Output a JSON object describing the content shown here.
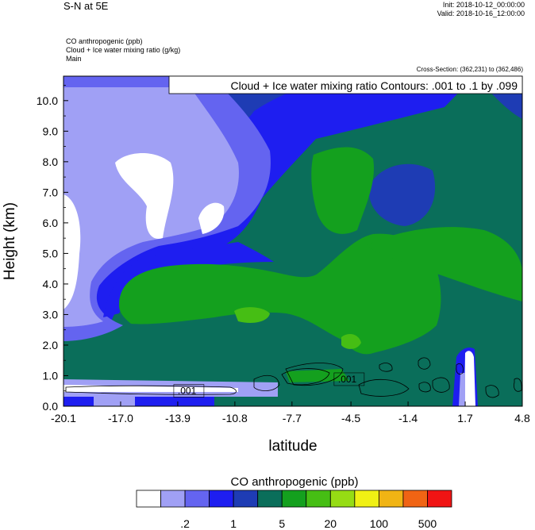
{
  "header": {
    "title": "S-N at 5E",
    "init": "Init: 2018-10-12_00:00:00",
    "valid": "Valid: 2018-10-16_12:00:00",
    "field1": "CO anthropogenic   (ppb)",
    "field2": "Cloud + Ice water mixing ratio   (g/kg)",
    "field3": "Main",
    "cross_section": "Cross-Section: (362,231) to (362,486)",
    "contour_info": "Cloud + Ice water mixing ratio Contours: .001 to .1 by .099"
  },
  "chart_data": {
    "type": "heatmap",
    "xlabel": "latitude",
    "ylabel": "Height (km)",
    "xlim": [
      -20.1,
      4.8
    ],
    "ylim": [
      0.0,
      10.8
    ],
    "x_ticks": [
      "-20.1",
      "-17.0",
      "-13.9",
      "-10.8",
      "-7.7",
      "-4.5",
      "-1.4",
      "1.7",
      "4.8"
    ],
    "y_ticks": [
      "0.0",
      "1.0",
      "2.0",
      "3.0",
      "4.0",
      "5.0",
      "6.0",
      "7.0",
      "8.0",
      "9.0",
      "10.0"
    ],
    "contour_labels": [
      ".001",
      ".001"
    ],
    "colorbar": {
      "title": "CO anthropogenic  (ppb)",
      "labels": [
        ".2",
        "1",
        "5",
        "20",
        "100",
        "500"
      ],
      "colors": [
        "#ffffff",
        "#a0a0f5",
        "#6464f0",
        "#1e1ef0",
        "#1e3cb4",
        "#0a6e5a",
        "#14a01e",
        "#46be14",
        "#96dc14",
        "#f0f014",
        "#f0b414",
        "#f06414",
        "#f01414"
      ]
    }
  }
}
